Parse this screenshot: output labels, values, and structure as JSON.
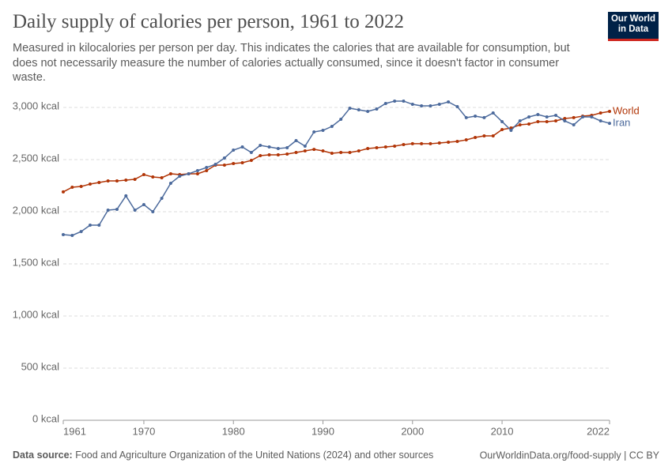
{
  "chart_data": {
    "type": "line",
    "title": "Daily supply of calories per person, 1961 to 2022",
    "subtitle": "Measured in kilocalories per person per day. This indicates the calories that are available for consumption, but does not necessarily measure the number of calories actually consumed, since it doesn't factor in consumer waste.",
    "x": [
      1961,
      1962,
      1963,
      1964,
      1965,
      1966,
      1967,
      1968,
      1969,
      1970,
      1971,
      1972,
      1973,
      1974,
      1975,
      1976,
      1977,
      1978,
      1979,
      1980,
      1981,
      1982,
      1983,
      1984,
      1985,
      1986,
      1987,
      1988,
      1989,
      1990,
      1991,
      1992,
      1993,
      1994,
      1995,
      1996,
      1997,
      1998,
      1999,
      2000,
      2001,
      2002,
      2003,
      2004,
      2005,
      2006,
      2007,
      2008,
      2009,
      2010,
      2011,
      2012,
      2013,
      2014,
      2015,
      2016,
      2017,
      2018,
      2019,
      2020,
      2021,
      2022
    ],
    "series": [
      {
        "name": "World",
        "color": "#b13507",
        "values": [
          2190,
          2235,
          2242,
          2265,
          2280,
          2295,
          2295,
          2303,
          2311,
          2356,
          2333,
          2326,
          2364,
          2356,
          2364,
          2364,
          2394,
          2447,
          2447,
          2462,
          2470,
          2492,
          2538,
          2545,
          2545,
          2553,
          2568,
          2583,
          2598,
          2583,
          2561,
          2568,
          2568,
          2583,
          2606,
          2614,
          2621,
          2629,
          2644,
          2652,
          2652,
          2652,
          2659,
          2667,
          2674,
          2689,
          2712,
          2727,
          2727,
          2788,
          2803,
          2833,
          2841,
          2864,
          2864,
          2871,
          2894,
          2902,
          2917,
          2924,
          2947,
          2962
        ]
      },
      {
        "name": "Iran",
        "color": "#4c6a9c",
        "values": [
          1780,
          1773,
          1810,
          1871,
          1871,
          2015,
          2023,
          2152,
          2015,
          2068,
          2000,
          2129,
          2273,
          2341,
          2364,
          2394,
          2424,
          2455,
          2515,
          2591,
          2621,
          2568,
          2636,
          2621,
          2606,
          2614,
          2682,
          2629,
          2765,
          2780,
          2818,
          2886,
          2992,
          2977,
          2962,
          2985,
          3038,
          3061,
          3061,
          3030,
          3015,
          3015,
          3030,
          3053,
          3008,
          2902,
          2917,
          2902,
          2947,
          2864,
          2780,
          2871,
          2909,
          2932,
          2909,
          2924,
          2871,
          2833,
          2909,
          2909,
          2871,
          2848
        ]
      }
    ],
    "xlim": [
      1961,
      2022
    ],
    "xticks": [
      1961,
      1970,
      1980,
      1990,
      2000,
      2010,
      2022
    ],
    "ylim": [
      0,
      3000
    ],
    "yticks": [
      {
        "value": 0,
        "label": "0 kcal"
      },
      {
        "value": 500,
        "label": "500 kcal"
      },
      {
        "value": 1000,
        "label": "1,000 kcal"
      },
      {
        "value": 1500,
        "label": "1,500 kcal"
      },
      {
        "value": 2000,
        "label": "2,000 kcal"
      },
      {
        "value": 2500,
        "label": "2,500 kcal"
      },
      {
        "value": 3000,
        "label": "3,000 kcal"
      }
    ],
    "grid": true,
    "source_label": "Data source:",
    "source": "Food and Agriculture Organization of the United Nations (2024) and other sources",
    "credit": "OurWorldinData.org/food-supply | CC BY",
    "logo": [
      "Our World",
      "in Data"
    ]
  }
}
